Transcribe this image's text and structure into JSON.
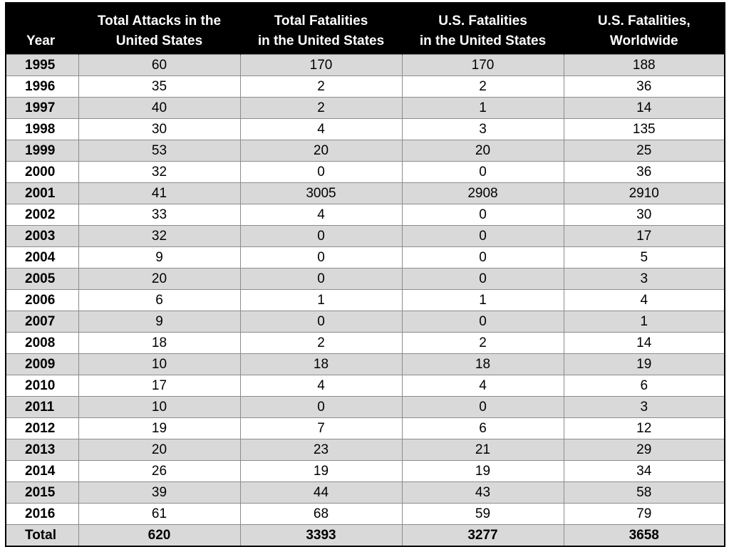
{
  "chart_data": {
    "type": "table",
    "columns": [
      "Year",
      "Total Attacks in the\nUnited States",
      "Total Fatalities\nin the United States",
      "U.S. Fatalities\nin the United States",
      "U.S. Fatalities,\nWorldwide"
    ],
    "rows": [
      [
        "1995",
        "60",
        "170",
        "170",
        "188"
      ],
      [
        "1996",
        "35",
        "2",
        "2",
        "36"
      ],
      [
        "1997",
        "40",
        "2",
        "1",
        "14"
      ],
      [
        "1998",
        "30",
        "4",
        "3",
        "135"
      ],
      [
        "1999",
        "53",
        "20",
        "20",
        "25"
      ],
      [
        "2000",
        "32",
        "0",
        "0",
        "36"
      ],
      [
        "2001",
        "41",
        "3005",
        "2908",
        "2910"
      ],
      [
        "2002",
        "33",
        "4",
        "0",
        "30"
      ],
      [
        "2003",
        "32",
        "0",
        "0",
        "17"
      ],
      [
        "2004",
        "9",
        "0",
        "0",
        "5"
      ],
      [
        "2005",
        "20",
        "0",
        "0",
        "3"
      ],
      [
        "2006",
        "6",
        "1",
        "1",
        "4"
      ],
      [
        "2007",
        "9",
        "0",
        "0",
        "1"
      ],
      [
        "2008",
        "18",
        "2",
        "2",
        "14"
      ],
      [
        "2009",
        "10",
        "18",
        "18",
        "19"
      ],
      [
        "2010",
        "17",
        "4",
        "4",
        "6"
      ],
      [
        "2011",
        "10",
        "0",
        "0",
        "3"
      ],
      [
        "2012",
        "19",
        "7",
        "6",
        "12"
      ],
      [
        "2013",
        "20",
        "23",
        "21",
        "29"
      ],
      [
        "2014",
        "26",
        "19",
        "19",
        "34"
      ],
      [
        "2015",
        "39",
        "44",
        "43",
        "58"
      ],
      [
        "2016",
        "61",
        "68",
        "59",
        "79"
      ]
    ],
    "total": [
      "Total",
      "620",
      "3393",
      "3277",
      "3658"
    ]
  },
  "colors": {
    "header_bg": "#000000",
    "header_text": "#ffffff",
    "shaded_row": "#d9d9d9",
    "plain_row": "#ffffff"
  }
}
